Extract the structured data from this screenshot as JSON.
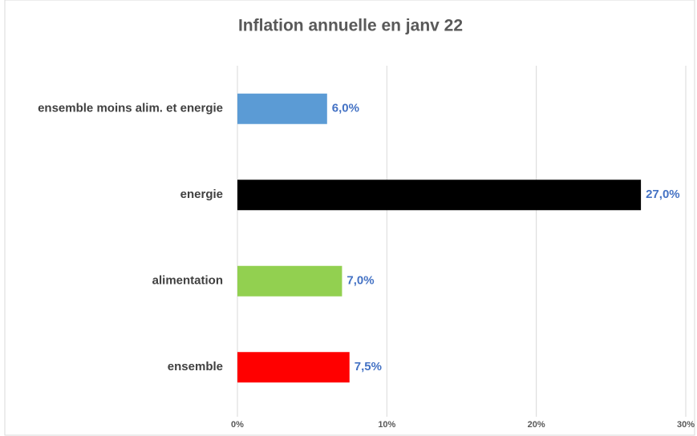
{
  "chart_data": {
    "type": "barh",
    "title": "Inflation annuelle en janv 22",
    "categories": [
      "ensemble moins alim. et energie",
      "energie",
      "alimentation",
      "ensemble"
    ],
    "values": [
      6,
      27,
      7,
      7.5
    ],
    "value_labels": [
      "6,0%",
      "27,0%",
      "7,0%",
      "7,5%"
    ],
    "colors": [
      "#5b9bd5",
      "#000000",
      "#92d050",
      "#ff0000"
    ],
    "xlim": [
      0,
      30
    ],
    "xticks": [
      {
        "value": 0,
        "label": "0%"
      },
      {
        "value": 10,
        "label": "10%"
      },
      {
        "value": 20,
        "label": "20%"
      },
      {
        "value": 30,
        "label": "30%"
      }
    ],
    "grid": true
  }
}
